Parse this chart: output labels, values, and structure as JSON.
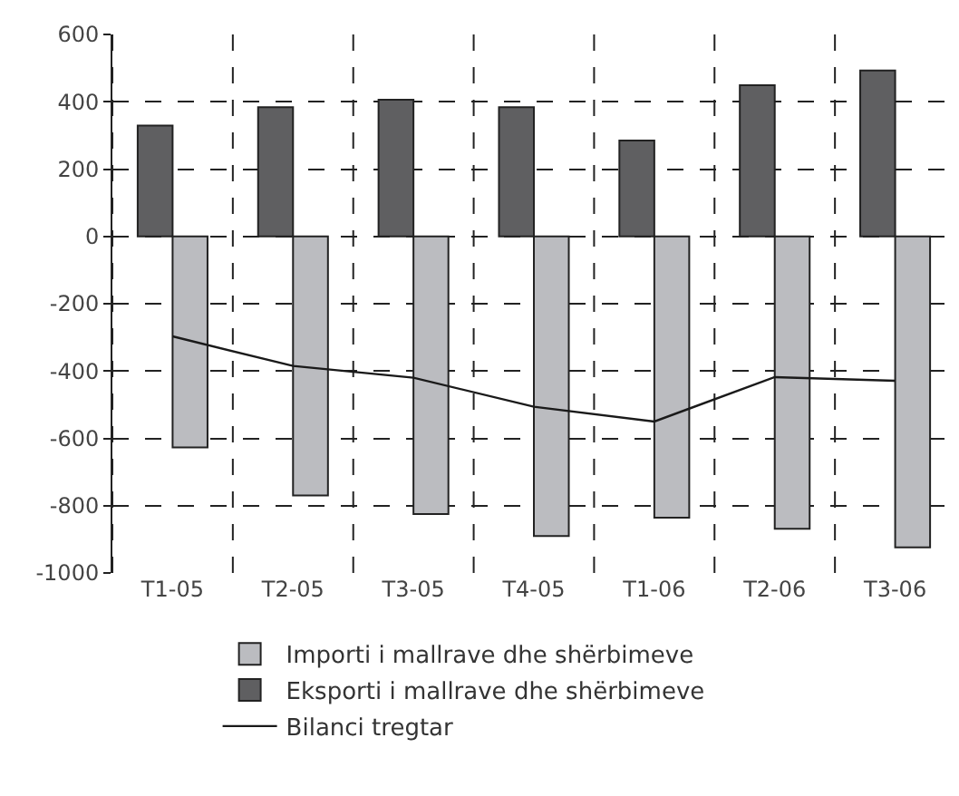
{
  "chart_data": {
    "type": "bar",
    "categories": [
      "T1-05",
      "T2-05",
      "T3-05",
      "T4-05",
      "T1-06",
      "T2-06",
      "T3-06"
    ],
    "series": [
      {
        "name": "Importi i mallrave dhe shërbimeve",
        "color": "#bbbcc0",
        "values": [
          -627,
          -770,
          -825,
          -890,
          -836,
          -869,
          -924
        ]
      },
      {
        "name": "Eksporti i mallrave dhe shërbimeve",
        "color": "#5f5f61",
        "values": [
          329,
          384,
          406,
          384,
          285,
          449,
          493
        ]
      },
      {
        "name": "Bilanci tregtar",
        "type": "line",
        "color": "#1a1a1a",
        "values": [
          -297,
          -385,
          -420,
          -506,
          -550,
          -418,
          -429
        ]
      }
    ],
    "ylim": [
      -1000,
      600
    ],
    "yticks": [
      -1000,
      -800,
      -600,
      -400,
      -200,
      0,
      200,
      400,
      600
    ],
    "grid": true,
    "legend": "bottom",
    "marker": "none",
    "line_style": "solid"
  }
}
